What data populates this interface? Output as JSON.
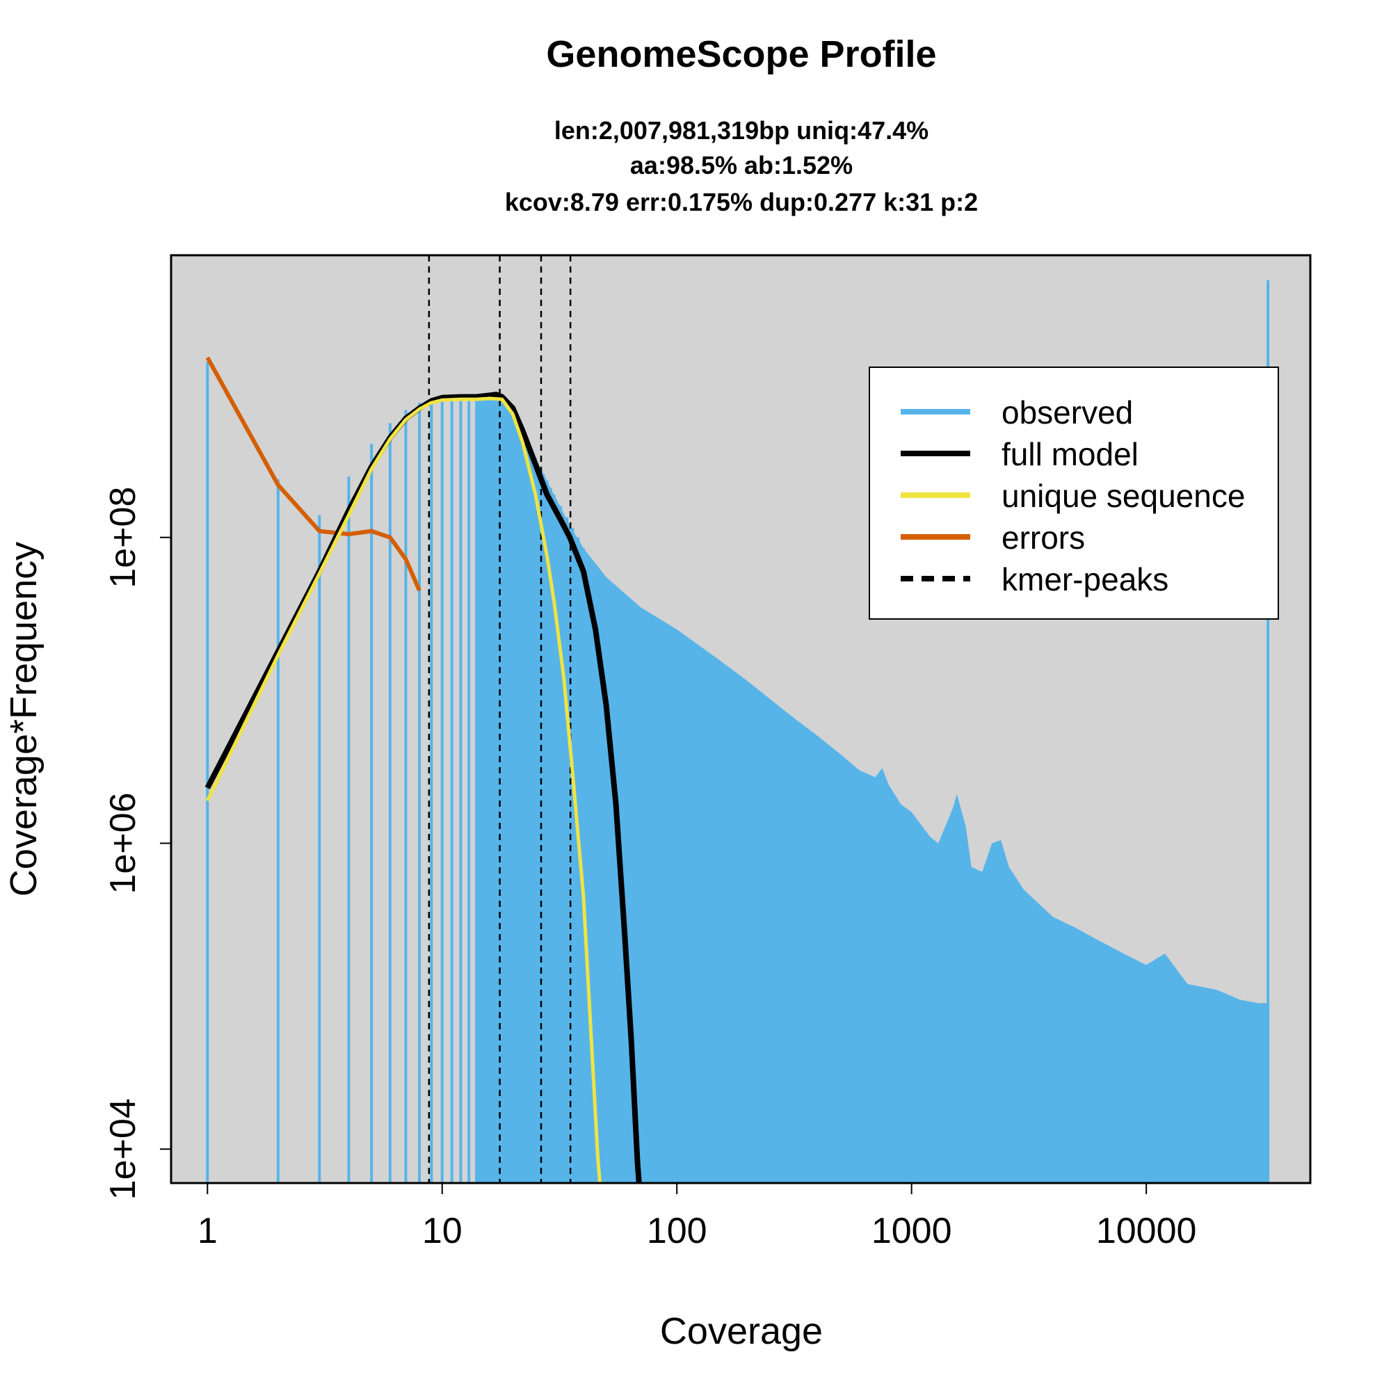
{
  "chart_data": {
    "type": "line",
    "title": "GenomeScope Profile",
    "subtitle_lines": [
      "len:2,007,981,319bp uniq:47.4%",
      "aa:98.5% ab:1.52%",
      "kcov:8.79 err:0.175%  dup:0.277  k:31 p:2"
    ],
    "xlabel": "Coverage",
    "ylabel": "Coverage*Frequency",
    "x_scale": "log",
    "y_scale": "log",
    "xlim": [
      0.7,
      50000
    ],
    "ylim": [
      6000,
      7000000000
    ],
    "x_ticks": [
      1,
      10,
      100,
      1000,
      10000
    ],
    "x_tick_labels": [
      "1",
      "10",
      "100",
      "1000",
      "10000"
    ],
    "y_ticks": [
      10000,
      1000000,
      100000000
    ],
    "y_tick_labels": [
      "1e+04",
      "1e+06",
      "1e+08"
    ],
    "background": "#d3d3d3",
    "grid": false,
    "legend_position": "top-right",
    "colors": {
      "observed": "#56b4e9",
      "full_model": "#000000",
      "unique_sequence": "#f0e442",
      "errors": "#d55e00",
      "kmer_peaks": "#000000"
    },
    "legend": [
      {
        "key": "observed",
        "label": "observed",
        "style": "solid"
      },
      {
        "key": "full_model",
        "label": "full model",
        "style": "solid"
      },
      {
        "key": "unique_sequence",
        "label": "unique sequence",
        "style": "solid"
      },
      {
        "key": "errors",
        "label": "errors",
        "style": "solid"
      },
      {
        "key": "kmer_peaks",
        "label": "kmer-peaks",
        "style": "dashed"
      }
    ],
    "kmer_peaks": [
      8.79,
      17.6,
      26.4,
      35.2
    ],
    "observed_envelope": [
      [
        1,
        1400000000
      ],
      [
        2,
        240000000
      ],
      [
        3,
        140000000
      ],
      [
        4,
        250000000
      ],
      [
        5,
        410000000
      ],
      [
        6,
        560000000
      ],
      [
        7,
        680000000
      ],
      [
        8,
        760000000
      ],
      [
        9,
        800000000
      ],
      [
        10,
        820000000
      ],
      [
        12,
        840000000
      ],
      [
        14,
        840000000
      ],
      [
        16,
        840000000
      ],
      [
        18,
        810000000
      ],
      [
        20,
        700000000
      ],
      [
        22,
        520000000
      ],
      [
        25,
        330000000
      ],
      [
        30,
        190000000
      ],
      [
        35,
        120000000
      ],
      [
        40,
        85000000
      ],
      [
        50,
        55000000
      ],
      [
        70,
        35000000
      ],
      [
        100,
        25000000
      ],
      [
        150,
        16000000
      ],
      [
        200,
        11500000
      ],
      [
        300,
        7000000
      ],
      [
        400,
        5000000
      ],
      [
        500,
        3800000
      ],
      [
        600,
        3000000
      ],
      [
        700,
        2700000
      ],
      [
        750,
        3100000
      ],
      [
        800,
        2400000
      ],
      [
        900,
        1800000
      ],
      [
        1000,
        1600000
      ],
      [
        1200,
        1100000
      ],
      [
        1300,
        1000000
      ],
      [
        1500,
        1700000
      ],
      [
        1560,
        2100000
      ],
      [
        1700,
        1300000
      ],
      [
        1800,
        700000
      ],
      [
        2000,
        650000
      ],
      [
        2200,
        1000000
      ],
      [
        2400,
        1050000
      ],
      [
        2600,
        700000
      ],
      [
        3000,
        500000
      ],
      [
        3500,
        400000
      ],
      [
        4000,
        330000
      ],
      [
        5000,
        280000
      ],
      [
        6000,
        240000
      ],
      [
        8000,
        190000
      ],
      [
        10000,
        160000
      ],
      [
        12000,
        190000
      ],
      [
        15000,
        120000
      ],
      [
        20000,
        110000
      ],
      [
        25000,
        95000
      ],
      [
        30000,
        90000
      ],
      [
        33000,
        90000
      ]
    ],
    "observed_spikes": [
      [
        1,
        1400000000
      ],
      [
        2,
        240000000
      ],
      [
        3,
        140000000
      ],
      [
        4,
        250000000
      ],
      [
        5,
        410000000
      ],
      [
        6,
        560000000
      ],
      [
        7,
        680000000
      ],
      [
        8,
        760000000
      ],
      [
        9,
        800000000
      ],
      [
        10,
        820000000
      ],
      [
        11,
        830000000
      ],
      [
        12,
        840000000
      ],
      [
        13,
        840000000
      ],
      [
        14,
        840000000
      ],
      [
        15,
        840000000
      ],
      [
        16,
        840000000
      ],
      [
        17,
        830000000
      ],
      [
        18,
        810000000
      ],
      [
        19,
        760000000
      ],
      [
        20,
        700000000
      ],
      [
        21,
        620000000
      ],
      [
        22,
        520000000
      ],
      [
        23,
        450000000
      ],
      [
        24,
        380000000
      ],
      [
        25,
        330000000
      ],
      [
        26,
        290000000
      ],
      [
        27,
        260000000
      ],
      [
        28,
        235000000
      ],
      [
        29,
        210000000
      ],
      [
        30,
        190000000
      ],
      [
        32,
        160000000
      ],
      [
        34,
        135000000
      ],
      [
        36,
        115000000
      ],
      [
        38,
        100000000
      ],
      [
        40,
        85000000
      ],
      [
        33000,
        4800000000
      ]
    ],
    "full_model": [
      [
        1,
        2300000
      ],
      [
        2,
        18000000
      ],
      [
        3,
        60000000
      ],
      [
        4,
        150000000
      ],
      [
        5,
        290000000
      ],
      [
        6,
        450000000
      ],
      [
        7,
        600000000
      ],
      [
        8,
        700000000
      ],
      [
        9,
        780000000
      ],
      [
        10,
        820000000
      ],
      [
        12,
        830000000
      ],
      [
        14,
        830000000
      ],
      [
        16,
        850000000
      ],
      [
        17,
        860000000
      ],
      [
        18,
        830000000
      ],
      [
        20,
        700000000
      ],
      [
        22,
        500000000
      ],
      [
        25,
        300000000
      ],
      [
        28,
        190000000
      ],
      [
        32,
        130000000
      ],
      [
        35,
        100000000
      ],
      [
        40,
        60000000
      ],
      [
        45,
        25000000
      ],
      [
        50,
        8000000
      ],
      [
        55,
        1800000
      ],
      [
        60,
        250000
      ],
      [
        64,
        50000
      ],
      [
        68,
        8000
      ],
      [
        69,
        6000
      ]
    ],
    "unique_sequence": [
      [
        1,
        1900000
      ],
      [
        2,
        17000000
      ],
      [
        3,
        58000000
      ],
      [
        4,
        140000000
      ],
      [
        5,
        280000000
      ],
      [
        6,
        440000000
      ],
      [
        7,
        590000000
      ],
      [
        8,
        690000000
      ],
      [
        9,
        760000000
      ],
      [
        10,
        790000000
      ],
      [
        12,
        800000000
      ],
      [
        14,
        800000000
      ],
      [
        16,
        810000000
      ],
      [
        18,
        800000000
      ],
      [
        20,
        640000000
      ],
      [
        22,
        420000000
      ],
      [
        25,
        190000000
      ],
      [
        28,
        75000000
      ],
      [
        30,
        38000000
      ],
      [
        33,
        12000000
      ],
      [
        36,
        2800000
      ],
      [
        40,
        450000
      ],
      [
        43,
        60000
      ],
      [
        46,
        9000
      ],
      [
        47,
        6000
      ]
    ],
    "errors": [
      [
        1,
        1500000000
      ],
      [
        2,
        220000000
      ],
      [
        3,
        110000000
      ],
      [
        4,
        105000000
      ],
      [
        5,
        110000000
      ],
      [
        6,
        100000000
      ],
      [
        7,
        72000000
      ],
      [
        8,
        45000000
      ]
    ]
  }
}
